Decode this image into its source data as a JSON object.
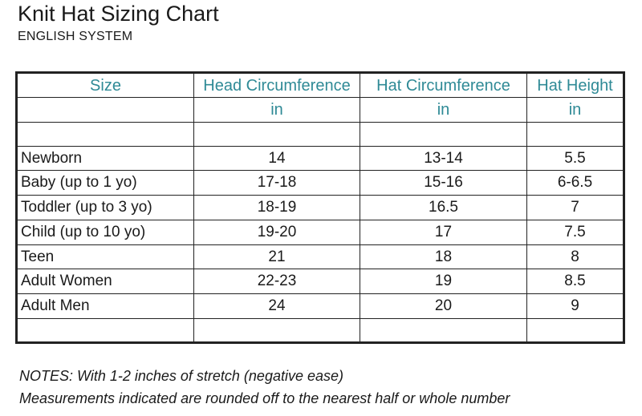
{
  "title": "Knit Hat Sizing Chart",
  "subtitle": "ENGLISH SYSTEM",
  "table": {
    "headers": [
      "Size",
      "Head Circumference",
      "Hat Circumference",
      "Hat Height"
    ],
    "units": [
      "",
      "in",
      "in",
      "in"
    ],
    "rows": [
      [
        "Newborn",
        "14",
        "13-14",
        "5.5"
      ],
      [
        "Baby (up to 1 yo)",
        "17-18",
        "15-16",
        "6-6.5"
      ],
      [
        "Toddler (up to 3 yo)",
        "18-19",
        "16.5",
        "7"
      ],
      [
        "Child (up to 10 yo)",
        "19-20",
        "17",
        "7.5"
      ],
      [
        "Teen",
        "21",
        "18",
        "8"
      ],
      [
        "Adult Women",
        "22-23",
        "19",
        "8.5"
      ],
      [
        "Adult Men",
        "24",
        "20",
        "9"
      ]
    ]
  },
  "notes": [
    "NOTES: With 1-2 inches of stretch (negative ease)",
    "Measurements indicated are rounded off to the nearest half or whole number"
  ],
  "colors": {
    "header_text": "#2f8a96",
    "border": "#222222"
  }
}
